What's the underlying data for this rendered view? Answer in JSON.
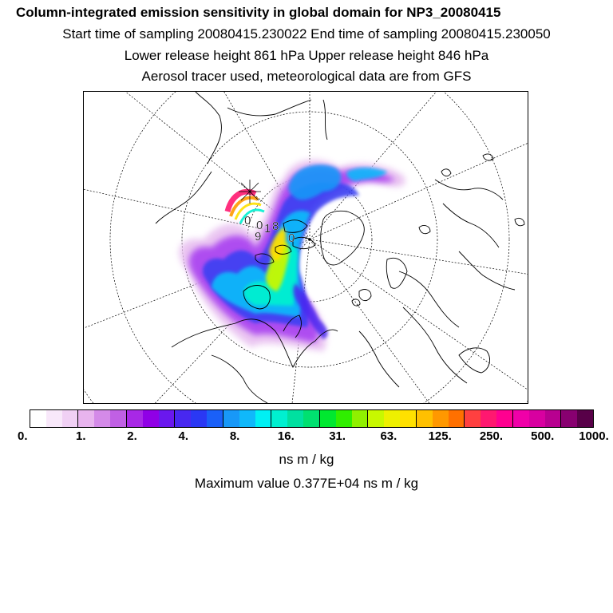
{
  "header": {
    "title": "Column-integrated emission sensitivity in global domain for NP3_20080415",
    "line2": "Start time of sampling 20080415.230022     End time of sampling 20080415.230050",
    "line3": "Lower release height  861 hPa        Upper release height  846 hPa",
    "line4": "Aerosol tracer used, meteorological data are from GFS"
  },
  "map": {
    "projection": "north-polar-stereographic",
    "release_point_labels": [
      "0",
      "0",
      "1",
      "8",
      "0",
      "9"
    ]
  },
  "colorbar": {
    "colors": [
      "#ffffff",
      "#f8e8fa",
      "#f0d0f4",
      "#e8b4ee",
      "#d48ae8",
      "#c060e4",
      "#a828e6",
      "#9000e6",
      "#6a18ee",
      "#4828f0",
      "#2a38f4",
      "#1a60f8",
      "#1898f8",
      "#10b8fa",
      "#00f0f4",
      "#00f0d0",
      "#00e0a0",
      "#00e070",
      "#00e830",
      "#30ee00",
      "#90f000",
      "#c8f800",
      "#eef000",
      "#ffe000",
      "#ffc000",
      "#ff9800",
      "#ff7000",
      "#ff4040",
      "#ff1870",
      "#ff0090",
      "#f000a8",
      "#d800a0",
      "#b80090",
      "#880070",
      "#580048"
    ],
    "tick_labels": [
      "0.",
      "1.",
      "2.",
      "4.",
      "8.",
      "16.",
      "31.",
      "63.",
      "125.",
      "250.",
      "500.",
      "1000."
    ],
    "unit": "ns m / kg",
    "max_value_text": "Maximum value  0.377E+04 ns m / kg"
  }
}
